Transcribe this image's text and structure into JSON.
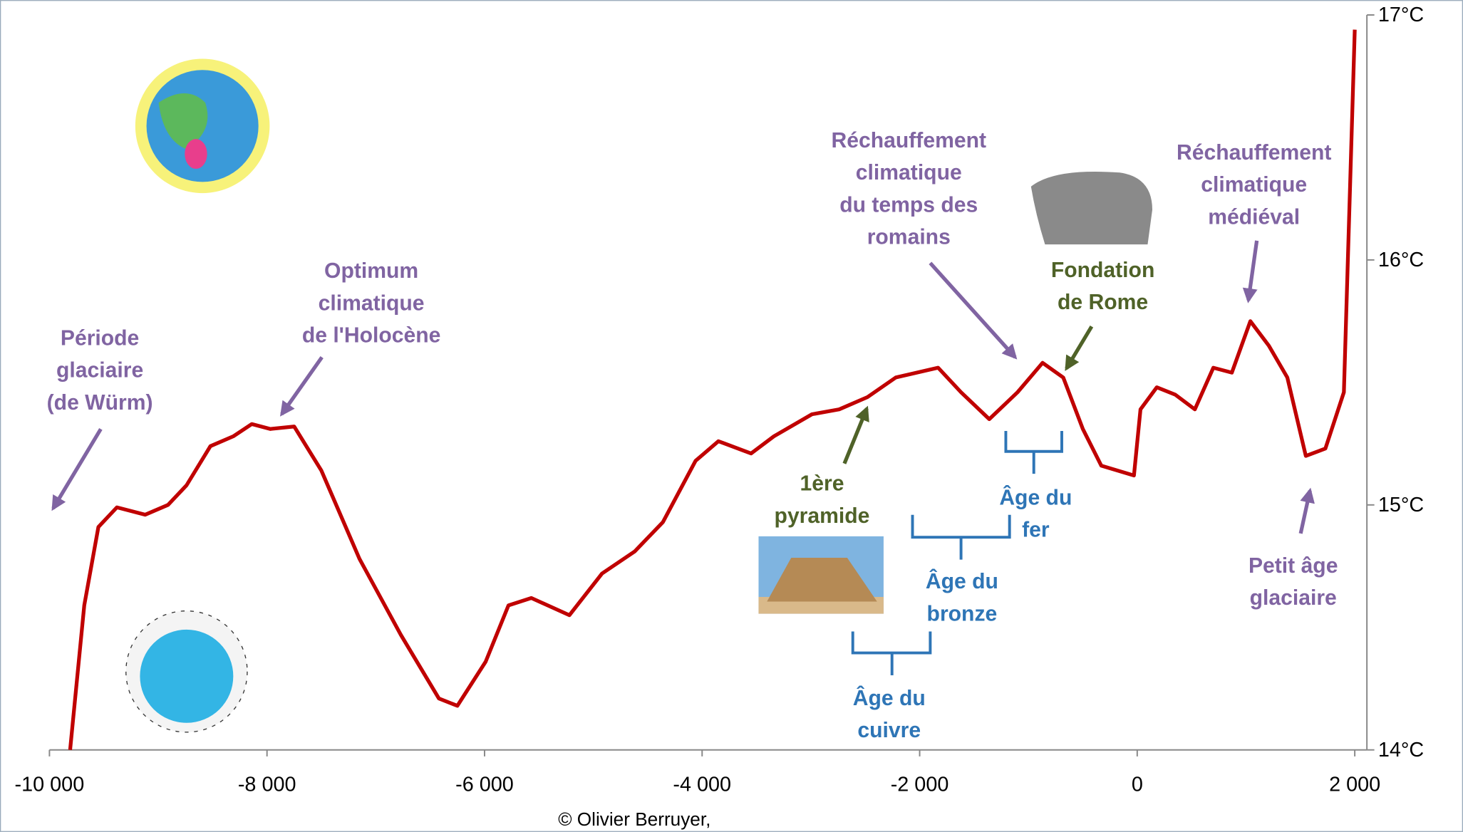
{
  "chart_data": {
    "type": "line",
    "x": [
      -9810,
      -9680,
      -9550,
      -9380,
      -9120,
      -8910,
      -8740,
      -8520,
      -8310,
      -8140,
      -7970,
      -7750,
      -7500,
      -7150,
      -6770,
      -6420,
      -6250,
      -5990,
      -5780,
      -5570,
      -5220,
      -4920,
      -4620,
      -4360,
      -4060,
      -3850,
      -3550,
      -3340,
      -2990,
      -2740,
      -2480,
      -2220,
      -1830,
      -1620,
      -1360,
      -1100,
      -870,
      -680,
      -500,
      -330,
      -30,
      30,
      180,
      350,
      530,
      700,
      870,
      1040,
      1210,
      1380,
      1550,
      1730,
      1900,
      2000
    ],
    "series": [
      {
        "color": "#c00000",
        "values": [
          14.0,
          14.59,
          14.91,
          14.99,
          14.96,
          15.0,
          15.08,
          15.24,
          15.28,
          15.33,
          15.31,
          15.32,
          15.14,
          14.78,
          14.47,
          14.21,
          14.18,
          14.36,
          14.59,
          14.62,
          14.55,
          14.72,
          14.81,
          14.93,
          15.18,
          15.26,
          15.21,
          15.28,
          15.37,
          15.39,
          15.44,
          15.52,
          15.56,
          15.46,
          15.35,
          15.46,
          15.58,
          15.52,
          15.31,
          15.16,
          15.12,
          15.39,
          15.48,
          15.45,
          15.39,
          15.56,
          15.54,
          15.75,
          15.65,
          15.52,
          15.2,
          15.23,
          15.46,
          16.94
        ]
      }
    ],
    "xlim": [
      -10000,
      2000
    ],
    "xticks": [
      {
        "value": -10000,
        "label": "-10 000"
      },
      {
        "value": -8000,
        "label": "-8 000"
      },
      {
        "value": -6000,
        "label": "-6 000"
      },
      {
        "value": -4000,
        "label": "-4 000"
      },
      {
        "value": -2000,
        "label": "-2 000"
      },
      0,
      {
        "value": 2000,
        "label": "2 000"
      }
    ],
    "ylim": [
      14,
      17
    ],
    "yticks": [
      {
        "value": 14,
        "label": "14°C"
      },
      {
        "value": 15,
        "label": "15°C"
      },
      {
        "value": 16,
        "label": "16°C"
      },
      {
        "value": 17,
        "label": "17°C"
      }
    ],
    "annotations": [
      {
        "lines": [
          "Période",
          "glaciaire",
          "(de Würm)"
        ],
        "color": "#8064a2"
      },
      {
        "lines": [
          "Optimum",
          "climatique",
          "de l'Holocène"
        ],
        "color": "#8064a2"
      },
      {
        "lines": [
          "Réchauffement",
          "climatique",
          "du temps des",
          "romains"
        ],
        "color": "#8064a2"
      },
      {
        "lines": [
          "Fondation",
          "de Rome"
        ],
        "color": "#4f6228"
      },
      {
        "lines": [
          "Réchauffement",
          "climatique",
          "médiéval"
        ],
        "color": "#8064a2"
      },
      {
        "lines": [
          "Petit âge",
          "glaciaire"
        ],
        "color": "#8064a2"
      },
      {
        "lines": [
          "1ère",
          "pyramide"
        ],
        "color": "#4f6228"
      },
      {
        "lines": [
          "Âge du",
          "fer"
        ],
        "color": "#2e75b6"
      },
      {
        "lines": [
          "Âge du",
          "bronze"
        ],
        "color": "#2e75b6"
      },
      {
        "lines": [
          "Âge du",
          "cuivre"
        ],
        "color": "#2e75b6"
      }
    ],
    "credit": "© Olivier Berruyer,"
  }
}
